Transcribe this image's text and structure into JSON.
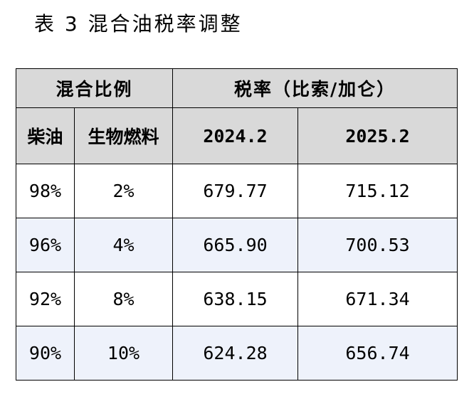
{
  "caption": "表 3  混合油税率调整",
  "table": {
    "header_group_left": "混合比例",
    "header_group_right": "税率（比索/加仑）",
    "col_diesel": "柴油",
    "col_biofuel": "生物燃料",
    "col_2024": "2024.2",
    "col_2025": "2025.2",
    "rows": [
      {
        "diesel": "98%",
        "biofuel": "2%",
        "y2024": "679.77",
        "y2025": "715.12"
      },
      {
        "diesel": "96%",
        "biofuel": "4%",
        "y2024": "665.90",
        "y2025": "700.53"
      },
      {
        "diesel": "92%",
        "biofuel": "8%",
        "y2024": "638.15",
        "y2025": "671.34"
      },
      {
        "diesel": "90%",
        "biofuel": "10%",
        "y2024": "624.28",
        "y2025": "656.74"
      }
    ]
  }
}
